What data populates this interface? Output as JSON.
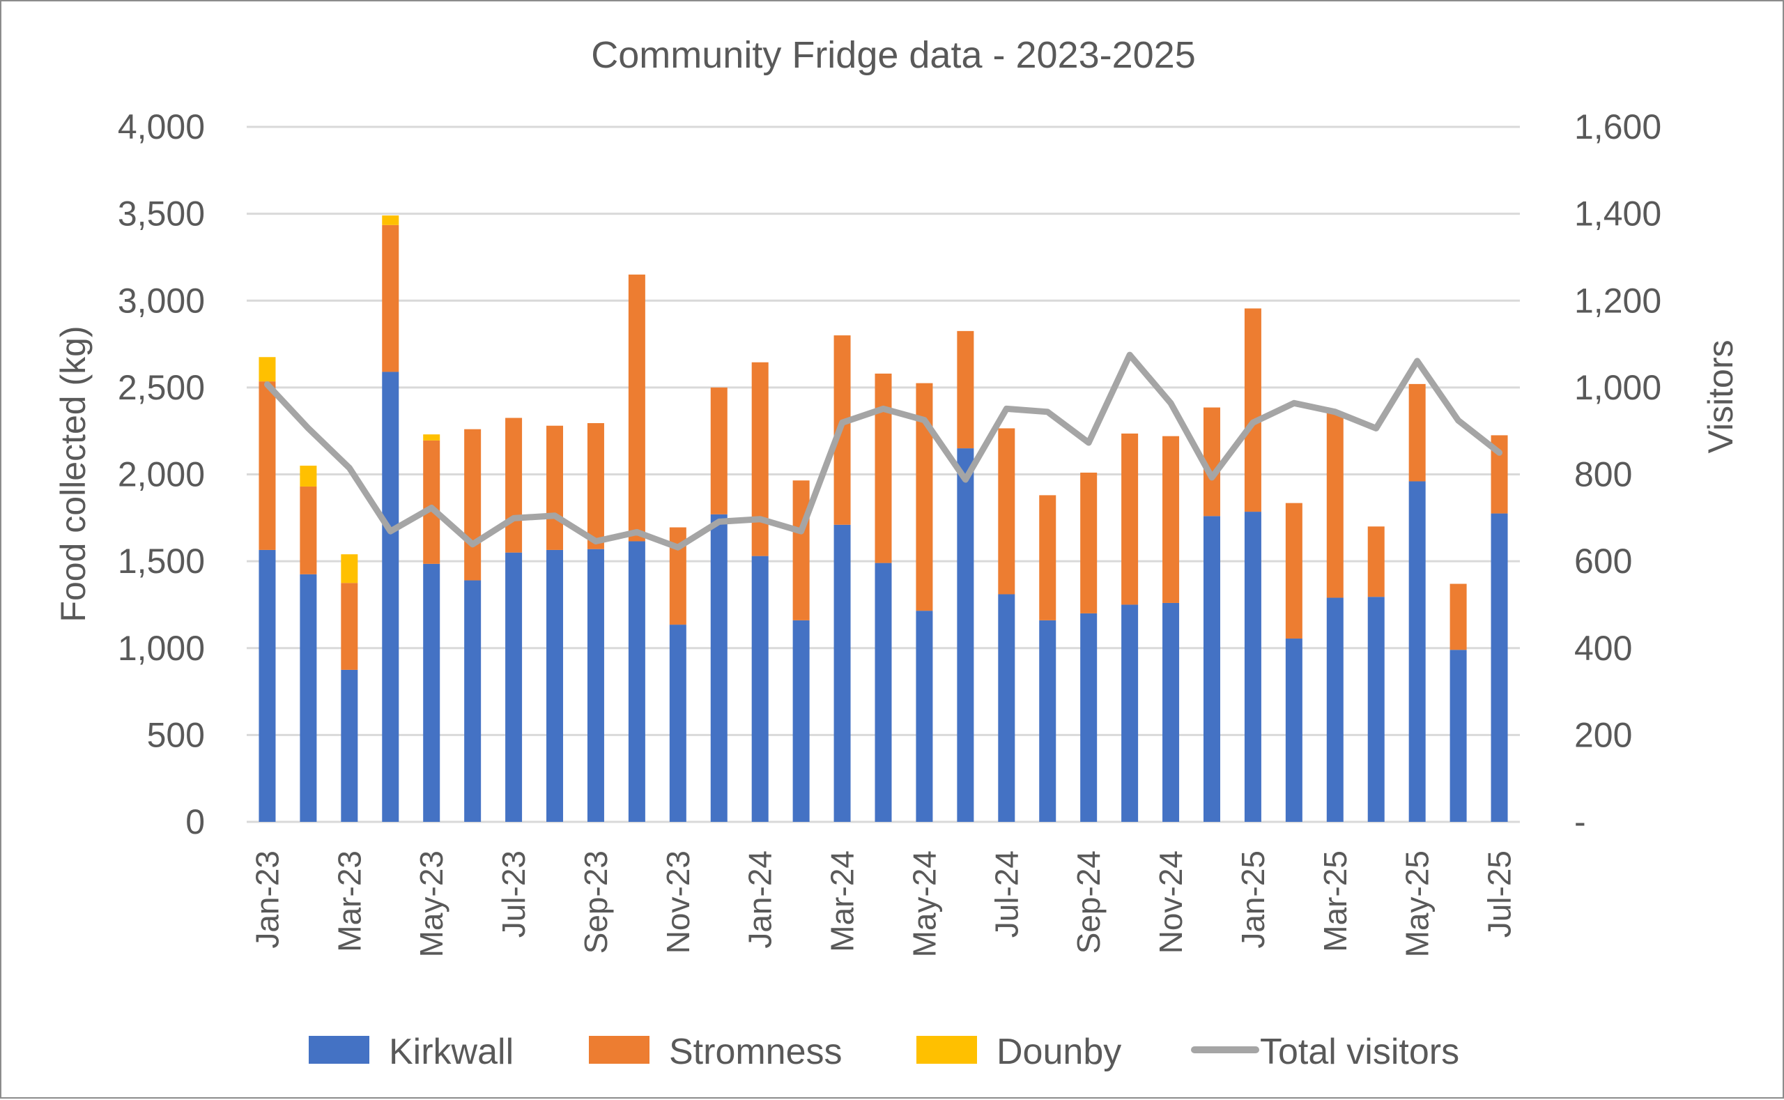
{
  "chart_data": {
    "type": "bar",
    "subtype": "stacked-bar-with-line-secondary-axis",
    "title": "Community Fridge data - 2023-2025",
    "xlabel": "",
    "ylabel": "Food collected (kg)",
    "y2label": "Visitors",
    "ylim": [
      0,
      4000
    ],
    "y2lim": [
      0,
      1600
    ],
    "yticks": [
      0,
      500,
      1000,
      1500,
      2000,
      2500,
      3000,
      3500,
      4000
    ],
    "ytick_labels": [
      "0",
      "500",
      "1,000",
      "1,500",
      "2,000",
      "2,500",
      "3,000",
      "3,500",
      "4,000"
    ],
    "y2ticks": [
      0,
      200,
      400,
      600,
      800,
      1000,
      1200,
      1400,
      1600
    ],
    "y2tick_labels": [
      "-",
      "200",
      "400",
      "600",
      "800",
      "1,000",
      "1,200",
      "1,400",
      "1,600"
    ],
    "grid": true,
    "legend_position": "bottom",
    "categories": [
      "Jan-23",
      "Feb-23",
      "Mar-23",
      "Apr-23",
      "May-23",
      "Jun-23",
      "Jul-23",
      "Aug-23",
      "Sep-23",
      "Oct-23",
      "Nov-23",
      "Dec-23",
      "Jan-24",
      "Feb-24",
      "Mar-24",
      "Apr-24",
      "May-24",
      "Jun-24",
      "Jul-24",
      "Aug-24",
      "Sep-24",
      "Oct-24",
      "Nov-24",
      "Dec-24",
      "Jan-25",
      "Feb-25",
      "Mar-25",
      "Apr-25",
      "May-25",
      "Jun-25",
      "Jul-25"
    ],
    "xtick_labels": [
      "Jan-23",
      "",
      "Mar-23",
      "",
      "May-23",
      "",
      "Jul-23",
      "",
      "Sep-23",
      "",
      "Nov-23",
      "",
      "Jan-24",
      "",
      "Mar-24",
      "",
      "May-24",
      "",
      "Jul-24",
      "",
      "Sep-24",
      "",
      "Nov-24",
      "",
      "Jan-25",
      "",
      "Mar-25",
      "",
      "May-25",
      "",
      "Jul-25"
    ],
    "series": [
      {
        "name": "Kirkwall",
        "type": "bar",
        "axis": "left",
        "color": "#4472C4",
        "values": [
          1565,
          1425,
          875,
          2590,
          1485,
          1390,
          1550,
          1565,
          1570,
          1615,
          1135,
          1770,
          1530,
          1160,
          1710,
          1490,
          1215,
          2150,
          1310,
          1160,
          1200,
          1250,
          1260,
          1760,
          1785,
          1055,
          1290,
          1295,
          1960,
          990,
          1775
        ]
      },
      {
        "name": "Stromness",
        "type": "bar",
        "axis": "left",
        "color": "#ED7D31",
        "values": [
          970,
          505,
          500,
          845,
          710,
          870,
          775,
          715,
          725,
          1535,
          560,
          730,
          1115,
          805,
          1090,
          1090,
          1310,
          675,
          955,
          720,
          810,
          985,
          960,
          625,
          1170,
          780,
          1070,
          405,
          560,
          380,
          450
        ]
      },
      {
        "name": "Dounby",
        "type": "bar",
        "axis": "left",
        "color": "#FFC000",
        "values": [
          140,
          120,
          165,
          55,
          35,
          0,
          0,
          0,
          0,
          0,
          0,
          0,
          0,
          0,
          0,
          0,
          0,
          0,
          0,
          0,
          0,
          0,
          0,
          0,
          0,
          0,
          0,
          0,
          0,
          0,
          0
        ]
      },
      {
        "name": "Total visitors",
        "type": "line",
        "axis": "right",
        "color": "#A5A5A5",
        "values": [
          1007,
          906,
          815,
          669,
          723,
          639,
          699,
          705,
          646,
          667,
          632,
          691,
          697,
          669,
          919,
          951,
          925,
          788,
          951,
          944,
          873,
          1075,
          964,
          793,
          919,
          964,
          944,
          906,
          1061,
          924,
          850
        ]
      }
    ]
  },
  "legend": {
    "items": [
      {
        "label": "Kirkwall",
        "kind": "box",
        "color": "#4472C4"
      },
      {
        "label": "Stromness",
        "kind": "box",
        "color": "#ED7D31"
      },
      {
        "label": "Dounby",
        "kind": "box",
        "color": "#FFC000"
      },
      {
        "label": "Total visitors",
        "kind": "line",
        "color": "#A5A5A5"
      }
    ]
  }
}
